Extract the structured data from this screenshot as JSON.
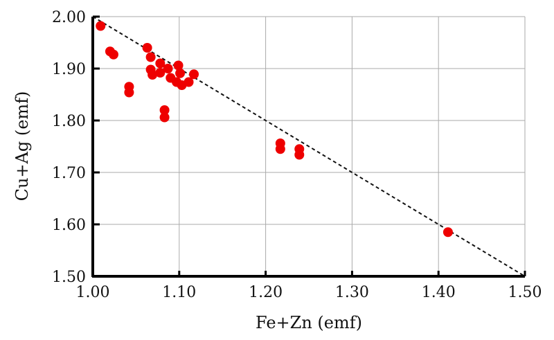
{
  "chart_data": {
    "type": "scatter",
    "title": "",
    "xlabel": "Fe+Zn (emf)",
    "ylabel": "Cu+Ag (emf)",
    "xlim": [
      1.0,
      1.5
    ],
    "ylim": [
      1.5,
      2.0
    ],
    "xticks": [
      "1.00",
      "1.10",
      "1.20",
      "1.30",
      "1.40",
      "1.50"
    ],
    "yticks": [
      "1.50",
      "1.60",
      "1.70",
      "1.80",
      "1.90",
      "2.00"
    ],
    "grid": true,
    "reference_line": {
      "from": [
        1.0,
        2.0
      ],
      "to": [
        1.5,
        1.5
      ],
      "style": "dashed"
    },
    "marker_color": "#ee0000",
    "points": [
      [
        1.009,
        1.982
      ],
      [
        1.02,
        1.933
      ],
      [
        1.024,
        1.927
      ],
      [
        1.063,
        1.94
      ],
      [
        1.067,
        1.922
      ],
      [
        1.067,
        1.898
      ],
      [
        1.069,
        1.888
      ],
      [
        1.078,
        1.91
      ],
      [
        1.078,
        1.892
      ],
      [
        1.087,
        1.9
      ],
      [
        1.09,
        1.882
      ],
      [
        1.099,
        1.906
      ],
      [
        1.101,
        1.891
      ],
      [
        1.097,
        1.874
      ],
      [
        1.103,
        1.868
      ],
      [
        1.111,
        1.874
      ],
      [
        1.117,
        1.889
      ],
      [
        1.042,
        1.865
      ],
      [
        1.042,
        1.854
      ],
      [
        1.083,
        1.82
      ],
      [
        1.083,
        1.806
      ],
      [
        1.217,
        1.756
      ],
      [
        1.217,
        1.745
      ],
      [
        1.239,
        1.745
      ],
      [
        1.239,
        1.734
      ],
      [
        1.411,
        1.585
      ]
    ]
  }
}
